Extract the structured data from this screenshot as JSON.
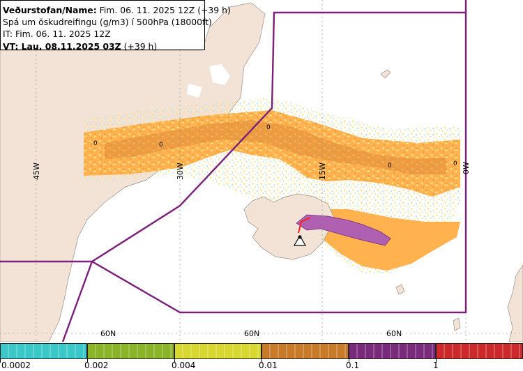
{
  "header": {
    "agency_label": "Veðurstofan/Name:",
    "agency_value": "Fim. 06. 11. 2025 12Z (+39 h)",
    "product": "Spá um öskudreifingu (g/m3) í 500hPa (18000ft)",
    "initial_time": "IT: Fim. 06. 11. 2025 12Z",
    "valid_label": "VT: Lau. 08.11.2025 03Z",
    "valid_offset": "(+39 h)"
  },
  "map": {
    "longitude_labels": [
      "45W",
      "30W",
      "15W",
      "0W"
    ],
    "latitude_labels": [
      "60N",
      "60N",
      "60N"
    ],
    "contour_labels": [
      "0",
      "0",
      "0",
      "0",
      "0"
    ],
    "volcano_icon": "volcano-warning-triangle-icon",
    "colors": {
      "land": "#f2e3d6",
      "sea": "#ffffff",
      "fir_boundary": "#7a1f7a",
      "ash_low": "#ffb24d",
      "ash_mid": "#e08a3a",
      "ash_high": "#b060b0",
      "ash_peak": "#ff2020"
    }
  },
  "legend": {
    "colors": [
      "#3cc8c8",
      "#8cb428",
      "#d8d830",
      "#c87a28",
      "#7a2a7a",
      "#cc2a2a"
    ],
    "ticks": [
      "0.0002",
      "0.002",
      "0.004",
      "0.01",
      "0.1",
      "1"
    ]
  }
}
